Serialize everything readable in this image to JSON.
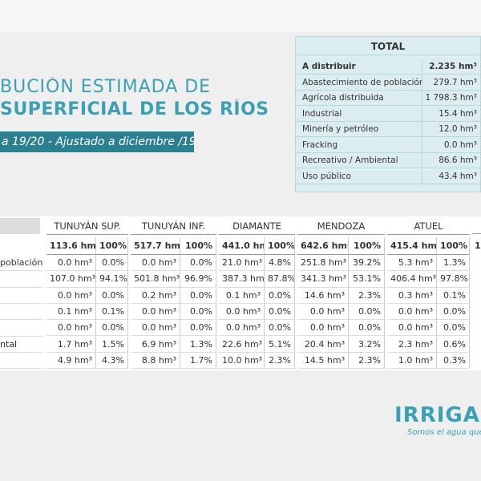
{
  "title": {
    "line1": "BUCIÓN ESTIMADA DE",
    "line2": "SUPERFICIAL DE LOS RÍOS",
    "subtitle": "a 19/20 - Ajustado a diciembre /19"
  },
  "total": {
    "title": "TOTAL",
    "rows": [
      [
        "A distribuir",
        "2.235 hm³"
      ],
      [
        "Abastecimiento de población",
        "279.7 hm³"
      ],
      [
        "Agrícola distribuida",
        "1 798.3 hm³"
      ],
      [
        "Industrial",
        "15.4 hm³"
      ],
      [
        "Minería y petróleo",
        "12.0 hm³"
      ],
      [
        "Fracking",
        "0.0 hm³"
      ],
      [
        "Recreativo / Ambiental",
        "86.6 hm³"
      ],
      [
        "Uso público",
        "43.4 hm³"
      ]
    ]
  },
  "table": {
    "rivers": [
      "TUNUYÁN SUP.",
      "TUNUYÁN INF.",
      "DIAMANTE",
      "MENDOZA",
      "ATUEL"
    ],
    "totals": [
      [
        "113.6 hm³",
        "100%"
      ],
      [
        "517.7 hm³",
        "100%"
      ],
      [
        "441.0 hm³",
        "100%"
      ],
      [
        "642.6 hm³",
        "100%"
      ],
      [
        "415.4 hm³",
        "100%"
      ]
    ],
    "cropped_total": "1",
    "row_labels": {
      "0": "población",
      "5": "ntal"
    },
    "rows": [
      [
        [
          "0.0 hm³",
          "0.0%"
        ],
        [
          "0.0 hm³",
          "0.0%"
        ],
        [
          "21.0 hm³",
          "4.8%"
        ],
        [
          "251.8 hm³",
          "39.2%"
        ],
        [
          "5.3 hm³",
          "1.3%"
        ]
      ],
      [
        [
          "107.0 hm³",
          "94.1%"
        ],
        [
          "501.8 hm³",
          "96.9%"
        ],
        [
          "387.3 hm³",
          "87.8%"
        ],
        [
          "341.3 hm³",
          "53.1%"
        ],
        [
          "406.4 hm³",
          "97.8%"
        ]
      ],
      [
        [
          "0.0 hm³",
          "0.0%"
        ],
        [
          "0.2 hm³",
          "0.0%"
        ],
        [
          "0.1 hm³",
          "0.0%"
        ],
        [
          "14.6 hm³",
          "2.3%"
        ],
        [
          "0.3 hm³",
          "0.1%"
        ]
      ],
      [
        [
          "0.1 hm³",
          "0.1%"
        ],
        [
          "0.0 hm³",
          "0.0%"
        ],
        [
          "0.0 hm³",
          "0.0%"
        ],
        [
          "0.0 hm³",
          "0.0%"
        ],
        [
          "0.0 hm³",
          "0.0%"
        ]
      ],
      [
        [
          "0.0 hm³",
          "0.0%"
        ],
        [
          "0.0 hm³",
          "0.0%"
        ],
        [
          "0.0 hm³",
          "0.0%"
        ],
        [
          "0.0 hm³",
          "0.0%"
        ],
        [
          "0.0 hm³",
          "0.0%"
        ]
      ],
      [
        [
          "1.7 hm³",
          "1.5%"
        ],
        [
          "6.9 hm³",
          "1.3%"
        ],
        [
          "22.6 hm³",
          "5.1%"
        ],
        [
          "20.4 hm³",
          "3.2%"
        ],
        [
          "2.3 hm³",
          "0.6%"
        ]
      ],
      [
        [
          "4.9 hm³",
          "4.3%"
        ],
        [
          "8.8 hm³",
          "1.7%"
        ],
        [
          "10.0 hm³",
          "2.3%"
        ],
        [
          "14.5 hm³",
          "2.3%"
        ],
        [
          "1.0 hm³",
          "0.3%"
        ]
      ]
    ]
  },
  "logo": {
    "name": "IRRIGAC",
    "tagline": "Somos el agua que p"
  }
}
